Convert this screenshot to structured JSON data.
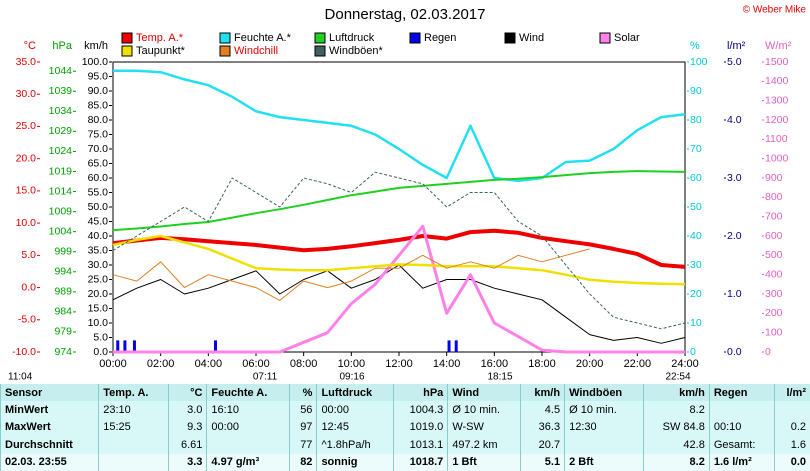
{
  "chart_data": {
    "type": "line",
    "title": "Donnerstag, 02.03.2017",
    "copyright": "© Weber Mike",
    "x": [
      0,
      1,
      2,
      3,
      4,
      5,
      6,
      7,
      8,
      9,
      10,
      11,
      12,
      13,
      14,
      15,
      16,
      17,
      18,
      19,
      20,
      21,
      22,
      23,
      24
    ],
    "xlim": [
      0,
      24
    ],
    "xticks": [
      {
        "value": 0,
        "label": "00:00"
      },
      {
        "value": 2,
        "label": "02:00"
      },
      {
        "value": 4,
        "label": "04:00"
      },
      {
        "value": 6,
        "label": "06:00"
      },
      {
        "value": 8,
        "label": "08:00"
      },
      {
        "value": 10,
        "label": "10:00"
      },
      {
        "value": 12,
        "label": "12:00"
      },
      {
        "value": 14,
        "label": "14:00"
      },
      {
        "value": 16,
        "label": "16:00"
      },
      {
        "value": 18,
        "label": "18:00"
      },
      {
        "value": 20,
        "label": "20:00"
      },
      {
        "value": 22,
        "label": "22:00"
      },
      {
        "value": 24,
        "label": "24:00"
      }
    ],
    "axes": [
      {
        "unit": "°C",
        "color": "#e00000",
        "side": "left",
        "lim": [
          -10,
          35
        ],
        "ticks": [
          {
            "value": 35,
            "label": "35.0"
          },
          {
            "value": 30,
            "label": "30.0"
          },
          {
            "value": 25,
            "label": "25.0"
          },
          {
            "value": 20,
            "label": "20.0"
          },
          {
            "value": 15,
            "label": "15.0"
          },
          {
            "value": 10,
            "label": "10.0"
          },
          {
            "value": 5,
            "label": "5.0"
          },
          {
            "value": 0,
            "label": "0.0"
          },
          {
            "value": -5,
            "label": "-5.0"
          },
          {
            "value": -10,
            "label": "-10.0"
          }
        ]
      },
      {
        "unit": "hPa",
        "color": "#00a000",
        "side": "left",
        "lim": [
          974,
          1046.3
        ],
        "ticks": [
          1044,
          1039,
          1034,
          1029,
          1024,
          1019,
          1014,
          1009,
          1004,
          999,
          994,
          989,
          984,
          979,
          974
        ]
      },
      {
        "unit": "km/h",
        "color": "#000000",
        "side": "left",
        "lim": [
          0,
          100
        ],
        "ticks": [
          {
            "value": 100,
            "label": "100.0"
          },
          {
            "value": 95,
            "label": "95.0"
          },
          {
            "value": 90,
            "label": "90.0"
          },
          {
            "value": 85,
            "label": "85.0"
          },
          {
            "value": 80,
            "label": "80.0"
          },
          {
            "value": 75,
            "label": "75.0"
          },
          {
            "value": 70,
            "label": "70.0"
          },
          {
            "value": 65,
            "label": "65.0"
          },
          {
            "value": 60,
            "label": "60.0"
          },
          {
            "value": 55,
            "label": "55.0"
          },
          {
            "value": 50,
            "label": "50.0"
          },
          {
            "value": 45,
            "label": "45.0"
          },
          {
            "value": 40,
            "label": "40.0"
          },
          {
            "value": 35,
            "label": "35.0"
          },
          {
            "value": 30,
            "label": "30.0"
          },
          {
            "value": 25,
            "label": "25.0"
          },
          {
            "value": 20,
            "label": "20.0"
          },
          {
            "value": 15,
            "label": "15.0"
          },
          {
            "value": 10,
            "label": "10.0"
          },
          {
            "value": 5,
            "label": "5.0"
          },
          {
            "value": 0,
            "label": "0.0"
          }
        ]
      },
      {
        "unit": "%",
        "color": "#00c8d8",
        "side": "right",
        "lim": [
          0,
          100
        ],
        "ticks": [
          100,
          90,
          80,
          70,
          60,
          50,
          40,
          30,
          20,
          10,
          0
        ]
      },
      {
        "unit": "l/m²",
        "color": "#000080",
        "side": "right",
        "lim": [
          0,
          5
        ],
        "ticks": [
          {
            "value": 5,
            "label": "5.0"
          },
          {
            "value": 4,
            "label": "4.0"
          },
          {
            "value": 3,
            "label": "3.0"
          },
          {
            "value": 2,
            "label": "2.0"
          },
          {
            "value": 1,
            "label": "1.0"
          },
          {
            "value": 0,
            "label": "0.0"
          }
        ]
      },
      {
        "unit": "W/m²",
        "color": "#e060c0",
        "side": "right",
        "lim": [
          0,
          1500
        ],
        "ticks": [
          1500,
          1400,
          1300,
          1200,
          1100,
          1000,
          900,
          800,
          700,
          600,
          500,
          400,
          300,
          200,
          100,
          0
        ]
      }
    ],
    "series": [
      {
        "name": "Temp. A.*",
        "color": "#ee0000",
        "axis": 0,
        "width": 4,
        "values": [
          6.9,
          7.3,
          7.7,
          7.5,
          7.2,
          6.9,
          6.6,
          6.2,
          5.8,
          6.0,
          6.4,
          6.9,
          7.4,
          8.0,
          7.6,
          8.6,
          8.8,
          8.5,
          7.7,
          7.2,
          6.7,
          6.0,
          5.2,
          3.5,
          3.2
        ]
      },
      {
        "name": "Feuchte A.*",
        "color": "#22e0f0",
        "axis": 3,
        "width": 2.5,
        "values": [
          97,
          97,
          96.5,
          94,
          92,
          88,
          83,
          81,
          80,
          79,
          78,
          75,
          70,
          64.5,
          60,
          78,
          60,
          59,
          60,
          65.5,
          66,
          70,
          76.5,
          81,
          82
        ]
      },
      {
        "name": "Luftdruck",
        "color": "#20d020",
        "axis": 1,
        "width": 2,
        "values": [
          1004.4,
          1004.8,
          1005.3,
          1005.9,
          1006.4,
          1007.5,
          1008.6,
          1009.6,
          1010.7,
          1011.9,
          1013.1,
          1014.0,
          1014.9,
          1015.4,
          1015.9,
          1016.4,
          1016.9,
          1017.2,
          1017.6,
          1018.1,
          1018.6,
          1018.9,
          1019.1,
          1019.0,
          1018.9
        ]
      },
      {
        "name": "Regen",
        "color": "#0000ee",
        "axis": 4,
        "kind": "bar",
        "x": [
          0.2,
          0.5,
          0.9,
          4.3,
          14.1,
          14.4
        ],
        "values": [
          0.2,
          0.2,
          0.2,
          0.2,
          0.2,
          0.2
        ]
      },
      {
        "name": "Wind",
        "color": "#000000",
        "axis": 2,
        "width": 1,
        "values": [
          18,
          22,
          25,
          20,
          22,
          25,
          28,
          20,
          25,
          28,
          22,
          25,
          30,
          22,
          25,
          25,
          22,
          20,
          18,
          12,
          6,
          4,
          5,
          3,
          5
        ]
      },
      {
        "name": "Solar",
        "color": "#ff80e8",
        "axis": 5,
        "width": 3,
        "values": [
          0,
          0,
          0,
          0,
          0,
          0,
          0,
          0,
          50,
          100,
          250,
          350,
          500,
          650,
          200,
          400,
          150,
          80,
          10,
          0,
          0,
          0,
          0,
          0,
          0
        ]
      },
      {
        "name": "Taupunkt*",
        "color": "#f0e000",
        "axis": 0,
        "width": 2.5,
        "values": [
          6.6,
          7.4,
          8.0,
          7.0,
          6.0,
          4.5,
          3.0,
          2.8,
          2.7,
          2.7,
          3.0,
          3.3,
          3.6,
          3.5,
          3.3,
          3.3,
          3.3,
          3.0,
          2.7,
          2.0,
          1.2,
          0.9,
          0.7,
          0.6,
          0.5
        ]
      },
      {
        "name": "Windchill",
        "color": "#e08020",
        "axis": 0,
        "width": 1,
        "values": [
          2,
          1,
          4,
          0,
          2,
          1,
          0,
          -2,
          1,
          0,
          1,
          3,
          3,
          5,
          3,
          4,
          3,
          5,
          4,
          5,
          6,
          null,
          null,
          null,
          null
        ]
      },
      {
        "name": "Windböen*",
        "color": "#406060",
        "axis": 2,
        "width": 1,
        "dash": true,
        "values": [
          35,
          40,
          45,
          50,
          45,
          60,
          55,
          50,
          60,
          58,
          55,
          62,
          60,
          58,
          50,
          55,
          55,
          45,
          40,
          30,
          20,
          12,
          10,
          8,
          10
        ]
      }
    ],
    "annotations": [
      "11:04",
      "07:11",
      "09:16",
      "18:15",
      "22:54"
    ]
  },
  "table": {
    "header": [
      "Sensor",
      "Temp. A.",
      "°C",
      "Feuchte A.",
      "%",
      "Luftdruck",
      "hPa",
      "Wind",
      "km/h",
      "Windböen",
      "km/h",
      "Regen",
      "l/m²"
    ],
    "rows": [
      [
        "MinWert",
        "23:10",
        "3.0",
        "16:10",
        "56",
        "00:00",
        "1004.3",
        "Ø 10 min.",
        "4.5",
        "Ø 10 min.",
        "8.2",
        null,
        null
      ],
      [
        "MaxWert",
        "15:25",
        "9.3",
        "00:00",
        "97",
        "12:45",
        "1019.0",
        "W-SW",
        "36.3",
        "12:30",
        "SW 84.8",
        "00:10",
        "0.2"
      ],
      [
        "Durchschnitt",
        null,
        "6.61",
        null,
        "77",
        "^1.8hPa/h",
        "1013.1",
        "497.2 km",
        "20.7",
        null,
        "42.8",
        "Gesamt:",
        "1.6"
      ],
      [
        "02.03. 23:55",
        null,
        "3.3",
        "4.97 g/m³",
        "82",
        "sonnig",
        "1018.7",
        "1 Bft",
        "5.1",
        "2 Bft",
        "8.2",
        "1.6 l/m²",
        "0.0"
      ]
    ]
  }
}
